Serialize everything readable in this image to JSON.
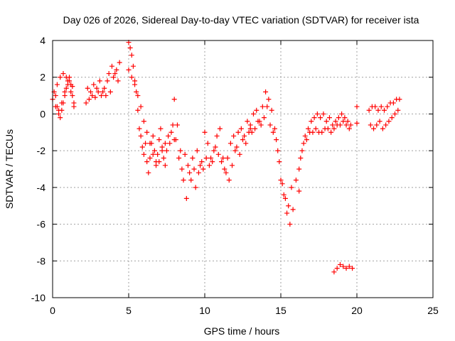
{
  "chart_data": {
    "type": "scatter",
    "title": "Day 026 of 2026, Sidereal Day-to-day VTEC variation (SDTVAR) for receiver ista",
    "xlabel": "GPS time / hours",
    "ylabel": "SDTVAR / TECUs",
    "xlim": [
      0,
      25
    ],
    "ylim": [
      -10,
      4
    ],
    "xticks": [
      0,
      5,
      10,
      15,
      20,
      25
    ],
    "yticks": [
      -10,
      -8,
      -6,
      -4,
      -2,
      0,
      2,
      4
    ],
    "xtick_labels": [
      "0",
      "5",
      "10",
      "15",
      "20",
      "25"
    ],
    "ytick_labels": [
      "-10",
      "-8",
      "-6",
      "-4",
      "-2",
      "0",
      "2",
      "4"
    ],
    "grid": true,
    "marker": "+",
    "color": "#ff0000",
    "series": [
      {
        "name": "SDTVAR",
        "x": [
          0.0,
          0.1,
          0.2,
          0.3,
          0.4,
          0.5,
          0.6,
          0.7,
          0.8,
          0.9,
          1.0,
          1.1,
          1.2,
          1.3,
          1.4
        ],
        "y": [
          0.8,
          1.2,
          1.0,
          0.4,
          0.0,
          -0.2,
          0.2,
          0.6,
          1.0,
          1.4,
          1.8,
          2.0,
          1.6,
          1.0,
          0.4
        ]
      },
      {
        "name": "SDTVAR",
        "x": [
          0.2,
          0.4,
          0.6,
          0.8,
          1.0,
          1.2,
          1.4,
          0.3,
          0.5,
          0.7,
          0.9,
          1.1,
          1.3
        ],
        "y": [
          0.4,
          0.2,
          0.6,
          1.2,
          1.6,
          1.2,
          0.6,
          1.6,
          2.0,
          2.2,
          2.0,
          1.8,
          1.5
        ]
      },
      {
        "name": "SDTVAR",
        "x": [
          2.2,
          2.4,
          2.6,
          2.8,
          3.0,
          3.2,
          3.4,
          3.6,
          3.8,
          4.0,
          4.2,
          4.4,
          2.3,
          2.5,
          2.7,
          2.9,
          3.1,
          3.3,
          3.5,
          3.7,
          3.9,
          4.1,
          4.3
        ],
        "y": [
          0.6,
          0.8,
          1.0,
          0.9,
          1.2,
          1.0,
          1.4,
          1.8,
          1.2,
          2.0,
          2.4,
          2.8,
          1.4,
          1.2,
          1.6,
          1.4,
          1.8,
          1.2,
          1.0,
          2.2,
          2.6,
          2.2,
          1.8
        ]
      },
      {
        "name": "SDTVAR",
        "x": [
          5.0,
          5.1,
          5.2,
          5.3,
          5.4,
          5.5,
          5.6,
          5.7,
          5.8,
          5.9,
          6.0,
          6.1,
          6.2,
          6.3,
          6.4,
          6.5,
          6.6,
          6.7,
          6.8,
          6.9,
          7.0,
          7.1,
          7.2,
          7.3,
          7.4,
          7.5,
          7.6,
          7.7,
          7.8,
          7.9,
          8.0
        ],
        "y": [
          3.9,
          3.6,
          3.2,
          2.6,
          1.8,
          1.2,
          0.2,
          -0.8,
          -1.2,
          -1.8,
          -2.2,
          -1.6,
          -2.6,
          -3.2,
          -2.4,
          -1.6,
          -1.2,
          -2.0,
          -2.6,
          -2.2,
          -1.4,
          -0.8,
          -1.8,
          -2.4,
          -2.8,
          -2.0,
          -1.2,
          -1.6,
          -1.0,
          -0.6,
          -1.4
        ]
      },
      {
        "name": "SDTVAR",
        "x": [
          5.0,
          5.2,
          5.4,
          5.6,
          5.8,
          6.0,
          6.2,
          6.4,
          6.6,
          6.8,
          7.0,
          7.2,
          7.4
        ],
        "y": [
          2.4,
          2.0,
          1.6,
          1.0,
          0.4,
          -0.4,
          -1.0,
          -1.6,
          -2.2,
          -2.8,
          -2.6,
          -2.0,
          -1.6
        ]
      },
      {
        "name": "SDTVAR",
        "x": [
          8.0,
          8.2,
          8.4,
          8.6,
          8.8,
          9.0,
          9.2,
          9.4,
          9.6,
          9.8,
          10.0,
          10.2,
          10.4,
          10.6,
          10.8,
          11.0,
          11.2,
          11.4,
          11.6,
          11.8,
          12.0,
          12.2,
          12.4,
          12.6,
          12.8,
          13.0
        ],
        "y": [
          0.8,
          -0.6,
          -2.0,
          -3.6,
          -4.6,
          -3.2,
          -2.4,
          -4.0,
          -3.2,
          -2.6,
          -1.0,
          -1.6,
          -2.4,
          -2.0,
          -1.2,
          -0.8,
          -2.4,
          -3.2,
          -3.6,
          -2.8,
          -2.0,
          -1.0,
          -0.8,
          -1.2,
          -0.4,
          -0.8
        ]
      },
      {
        "name": "SDTVAR",
        "x": [
          8.1,
          8.3,
          8.5,
          8.7,
          8.9,
          9.1,
          9.3,
          9.5,
          9.7,
          9.9,
          10.1,
          10.3,
          10.5,
          10.7,
          10.9,
          11.1,
          11.3,
          11.5,
          11.7,
          11.9,
          12.1,
          12.3,
          12.5,
          12.7,
          12.9
        ],
        "y": [
          -1.4,
          -2.4,
          -3.0,
          -2.2,
          -2.8,
          -3.6,
          -3.0,
          -2.0,
          -2.8,
          -3.0,
          -2.4,
          -2.8,
          -2.6,
          -1.8,
          -2.2,
          -2.6,
          -3.0,
          -2.4,
          -1.6,
          -1.2,
          -1.8,
          -2.2,
          -1.4,
          -1.6,
          -1.0
        ]
      },
      {
        "name": "SDTVAR",
        "x": [
          13.0,
          13.2,
          13.4,
          13.6,
          13.8,
          14.0,
          14.2,
          14.4,
          14.6,
          14.8,
          15.0,
          15.2,
          15.4,
          15.6,
          15.8,
          16.0,
          16.2
        ],
        "y": [
          -0.6,
          0.0,
          0.2,
          -0.4,
          0.4,
          1.2,
          0.8,
          0.2,
          -0.8,
          -2.0,
          -3.6,
          -4.4,
          -5.4,
          -6.0,
          -5.2,
          -3.6,
          -4.2
        ]
      },
      {
        "name": "SDTVAR",
        "x": [
          13.1,
          13.3,
          13.5,
          13.7,
          13.9,
          14.1,
          14.3,
          14.5,
          14.7,
          14.9,
          15.1,
          15.3,
          15.5,
          15.7
        ],
        "y": [
          -1.0,
          -0.8,
          -0.4,
          -0.6,
          -0.2,
          0.4,
          -0.6,
          -1.0,
          -1.4,
          -2.6,
          -3.8,
          -4.6,
          -5.0,
          -4.0
        ]
      },
      {
        "name": "SDTVAR",
        "x": [
          16.2,
          16.4,
          16.6,
          16.8,
          17.0,
          17.2,
          17.4,
          17.6,
          17.8,
          18.0,
          18.2,
          18.4,
          18.6,
          18.8,
          19.0,
          19.2,
          19.4,
          19.6
        ],
        "y": [
          -3.0,
          -2.0,
          -1.2,
          -0.8,
          -0.4,
          -0.2,
          0.0,
          -0.2,
          0.0,
          -0.4,
          -0.2,
          -0.6,
          -0.4,
          -0.2,
          0.0,
          -0.2,
          -0.4,
          -0.6
        ]
      },
      {
        "name": "SDTVAR",
        "x": [
          16.3,
          16.5,
          16.7,
          16.9,
          17.1,
          17.3,
          17.5,
          17.7,
          17.9,
          18.1,
          18.3,
          18.5,
          18.7,
          18.9,
          19.1,
          19.3,
          19.5
        ],
        "y": [
          -2.4,
          -1.6,
          -1.4,
          -1.0,
          -1.0,
          -0.8,
          -1.0,
          -1.0,
          -0.8,
          -0.8,
          -1.0,
          -0.8,
          -0.6,
          -0.6,
          -0.4,
          -0.6,
          -0.8
        ]
      },
      {
        "name": "SDTVAR",
        "x": [
          18.5,
          18.7,
          18.9,
          19.1,
          19.3,
          19.5,
          19.7
        ],
        "y": [
          -8.6,
          -8.4,
          -8.2,
          -8.3,
          -8.4,
          -8.3,
          -8.4
        ]
      },
      {
        "name": "SDTVAR",
        "x": [
          20.0,
          20.0
        ],
        "y": [
          0.4,
          -0.5
        ]
      },
      {
        "name": "SDTVAR",
        "x": [
          20.8,
          21.0,
          21.2,
          21.4,
          21.6,
          21.8,
          22.0,
          22.2,
          22.4,
          22.6,
          22.8
        ],
        "y": [
          0.2,
          0.4,
          0.4,
          0.2,
          0.4,
          0.2,
          0.4,
          0.6,
          0.6,
          0.8,
          0.8
        ]
      },
      {
        "name": "SDTVAR",
        "x": [
          20.9,
          21.1,
          21.3,
          21.5,
          21.7,
          21.9,
          22.1,
          22.3,
          22.5,
          22.7
        ],
        "y": [
          -0.6,
          -0.8,
          -0.6,
          -0.4,
          -0.8,
          -0.6,
          -0.4,
          -0.2,
          0.0,
          0.2
        ]
      }
    ]
  }
}
